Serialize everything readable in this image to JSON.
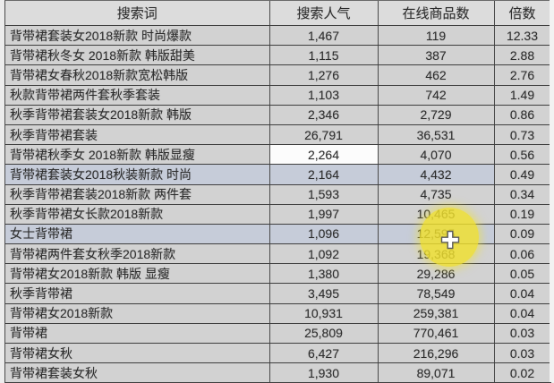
{
  "table": {
    "headers": [
      "搜索词",
      "搜索人气",
      "在线商品数",
      "倍数"
    ],
    "rows": [
      [
        "背带裙套装女2018新款 时尚爆款",
        "1,467",
        "119",
        "12.33"
      ],
      [
        "背带裙秋冬女 2018新款 韩版甜美",
        "1,115",
        "387",
        "2.88"
      ],
      [
        "背带裙女春秋2018新款宽松韩版",
        "1,276",
        "462",
        "2.76"
      ],
      [
        "秋款背带裙两件套秋季套装",
        "1,103",
        "742",
        "1.49"
      ],
      [
        "秋季背带裙套装女2018新款 韩版",
        "2,346",
        "2,729",
        "0.86"
      ],
      [
        "秋季背带裙套装",
        "26,791",
        "36,531",
        "0.73"
      ],
      [
        "背带裙秋季女 2018新款 韩版显瘦",
        "2,264",
        "4,070",
        "0.56"
      ],
      [
        "背带裙套装女2018秋装新款 时尚",
        "2,164",
        "4,432",
        "0.49"
      ],
      [
        "秋季背带裙套装2018新款 两件套",
        "1,593",
        "4,735",
        "0.34"
      ],
      [
        "秋季背带裙女长款2018新款",
        "1,997",
        "10,465",
        "0.19"
      ],
      [
        "女士背带裙",
        "1,096",
        "12,595",
        "0.09"
      ],
      [
        "背带裙两件套女秋季2018新款",
        "1,092",
        "19,368",
        "0.06"
      ],
      [
        "背带裙女2018新款 韩版 显瘦",
        "1,380",
        "29,286",
        "0.05"
      ],
      [
        "秋季背带裙",
        "3,495",
        "78,549",
        "0.04"
      ],
      [
        "背带裙女2018新款",
        "10,931",
        "259,381",
        "0.04"
      ],
      [
        "背带裙",
        "25,809",
        "770,461",
        "0.03"
      ],
      [
        "背带裙女秋",
        "6,427",
        "216,296",
        "0.03"
      ],
      [
        "背带裙套装女秋",
        "1,930",
        "89,071",
        "0.02"
      ]
    ],
    "active_cell": {
      "row": 6,
      "col": 1
    },
    "selected_rows": [
      7,
      10
    ],
    "selected_cols": [
      0,
      1,
      2
    ]
  },
  "ui": {
    "cursor_icon": "spreadsheet-plus-cursor",
    "click_highlight_color": "#f0e12d",
    "selection_color": "#c6ccd9",
    "row_color": "#d2d2d2",
    "header_color": "#dcdcdc"
  }
}
